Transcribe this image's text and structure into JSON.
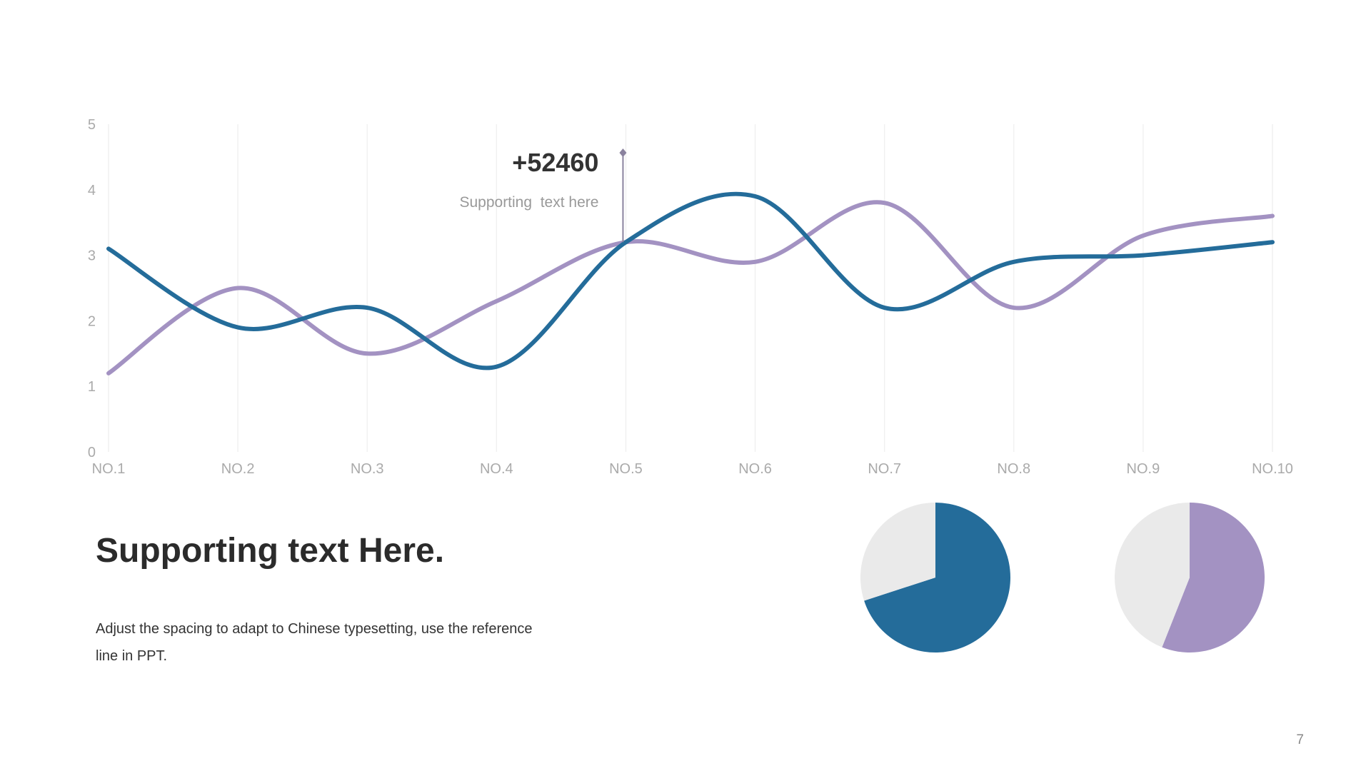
{
  "chart_data": [
    {
      "type": "line",
      "categories": [
        "NO.1",
        "NO.2",
        "NO.3",
        "NO.4",
        "NO.5",
        "NO.6",
        "NO.7",
        "NO.8",
        "NO.9",
        "NO.10"
      ],
      "series": [
        {
          "values": [
            3.1,
            1.9,
            2.2,
            1.3,
            3.2,
            3.9,
            2.2,
            2.9,
            3.0,
            3.2
          ],
          "color": "#246c9a"
        },
        {
          "values": [
            1.2,
            2.5,
            1.5,
            2.3,
            3.2,
            2.9,
            3.8,
            2.2,
            3.3,
            3.6
          ],
          "color": "#a392c2"
        }
      ],
      "yticks": [
        "0",
        "1",
        "2",
        "3",
        "4",
        "5"
      ],
      "ylim": [
        0,
        5
      ],
      "smooth": true,
      "grid": "vertical",
      "annotation": {
        "category": "NO.5",
        "value": "+52460",
        "caption": "Supporting  text here"
      }
    },
    {
      "type": "pie",
      "slices": [
        {
          "value": 70,
          "color": "#246c9a"
        },
        {
          "value": 30,
          "color": "#eaeaea"
        }
      ]
    },
    {
      "type": "pie",
      "slices": [
        {
          "value": 56,
          "color": "#a392c2"
        },
        {
          "value": 44,
          "color": "#eaeaea"
        }
      ]
    }
  ],
  "headline": "Supporting text Here.",
  "body_text": "Adjust the spacing to adapt to Chinese typesetting, use the reference line in PPT.",
  "page_number": "7"
}
